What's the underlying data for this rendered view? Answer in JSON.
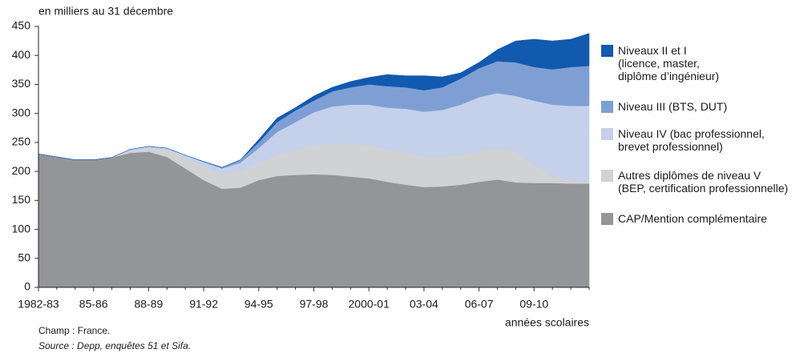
{
  "chart_data": {
    "type": "stacked_area",
    "subtitle": "en milliers au 31 décembre",
    "x_label": "années scolaires",
    "notes": [
      "Champ : France.",
      "Source : Depp, enquêtes 51 et Sifa."
    ],
    "categories": [
      "1982-83",
      null,
      null,
      "85-86",
      null,
      null,
      "88-89",
      null,
      null,
      "91-92",
      null,
      null,
      "94-95",
      null,
      null,
      "97-98",
      null,
      null,
      "2000-01",
      null,
      null,
      "03-04",
      null,
      null,
      "06-07",
      null,
      null,
      "09-10",
      null,
      null,
      null
    ],
    "ylim": [
      0,
      450
    ],
    "yticks": [
      0,
      50,
      100,
      150,
      200,
      250,
      300,
      350,
      400,
      450
    ],
    "series": [
      {
        "name": "CAP/Mention complémentaire",
        "color": "#939598",
        "values": [
          230,
          225,
          220,
          220,
          224,
          232,
          234,
          225,
          205,
          185,
          170,
          172,
          185,
          192,
          194,
          195,
          194,
          191,
          188,
          182,
          177,
          173,
          174,
          177,
          182,
          186,
          181,
          180,
          180,
          179,
          179
        ]
      },
      {
        "name": "Autres diplômes de niveau V\n(BEP, certification professionnelle)",
        "color": "#d1d2d4",
        "values": [
          0,
          0,
          0,
          0,
          0,
          2,
          6,
          13,
          20,
          23,
          25,
          28,
          30,
          36,
          43,
          50,
          54,
          57,
          58,
          56,
          55,
          52,
          51,
          51,
          53,
          54,
          52,
          32,
          12,
          6,
          3
        ]
      },
      {
        "name": "Niveau IV (bac professionnel,\nbrevet professionnel)",
        "color": "#c5d0ea",
        "values": [
          0,
          0,
          0,
          0,
          0,
          4,
          3,
          2,
          3,
          8,
          10,
          15,
          25,
          40,
          48,
          57,
          64,
          67,
          69,
          72,
          76,
          78,
          81,
          87,
          93,
          95,
          97,
          110,
          123,
          128,
          131
        ]
      },
      {
        "name": "Niveau III (BTS, DUT)",
        "color": "#7f9fd4",
        "values": [
          0,
          0,
          0,
          0,
          0,
          0,
          0,
          0,
          0,
          1,
          2,
          5,
          10,
          17,
          20,
          20,
          26,
          30,
          35,
          37,
          37,
          37,
          39,
          45,
          50,
          55,
          58,
          58,
          61,
          67,
          69
        ]
      },
      {
        "name": "Niveaux II et I\n(licence, master,\ndiplôme d’ingénieur)",
        "color": "#1259b0",
        "values": [
          0,
          0,
          0,
          0,
          0,
          0,
          0,
          0,
          0,
          0,
          0,
          0,
          5,
          7,
          5,
          8,
          7,
          10,
          12,
          20,
          20,
          25,
          18,
          10,
          10,
          20,
          37,
          48,
          49,
          48,
          56
        ]
      }
    ]
  }
}
